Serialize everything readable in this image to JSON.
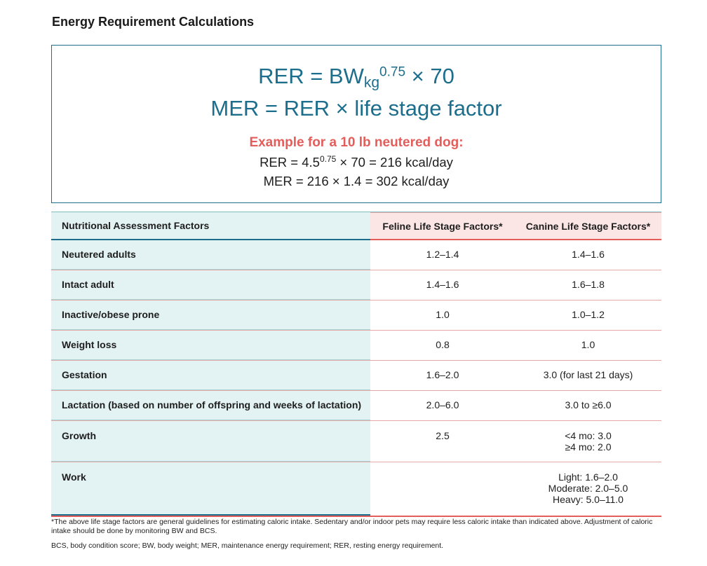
{
  "title": "Energy Requirement Calculations",
  "formula": {
    "rer_left": "RER = BW",
    "rer_sub": "kg",
    "rer_sup": "0.75",
    "rer_right": " × 70",
    "mer": "MER = RER × life stage factor"
  },
  "example": {
    "title": "Example for a 10 lb neutered dog:",
    "line1_left": "RER = 4.5",
    "line1_sup": "0.75",
    "line1_right": " × 70 = 216 kcal/day",
    "line2": "MER = 216 × 1.4 = 302 kcal/day"
  },
  "table": {
    "headers": [
      "Nutritional Assessment Factors",
      "Feline Life Stage Factors*",
      "Canine Life Stage Factors*"
    ],
    "rows": [
      {
        "factor": "Neutered adults",
        "feline": "1.2–1.4",
        "canine": "1.4–1.6"
      },
      {
        "factor": "Intact adult",
        "feline": "1.4–1.6",
        "canine": "1.6–1.8"
      },
      {
        "factor": "Inactive/obese prone",
        "feline": "1.0",
        "canine": "1.0–1.2"
      },
      {
        "factor": "Weight loss",
        "feline": "0.8",
        "canine": "1.0"
      },
      {
        "factor": "Gestation",
        "feline": "1.6–2.0",
        "canine": "3.0 (for last 21 days)"
      },
      {
        "factor": "Lactation (based on number of offspring and weeks of lactation)",
        "feline": "2.0–6.0",
        "canine": "3.0 to ≥6.0"
      },
      {
        "factor": "Growth",
        "feline": "2.5",
        "canine_lines": [
          "<4 mo: 3.0",
          "≥4 mo: 2.0"
        ]
      },
      {
        "factor": "Work",
        "feline": "",
        "canine_lines": [
          "Light: 1.6–2.0",
          "Moderate: 2.0–5.0",
          "Heavy: 5.0–11.0"
        ]
      }
    ]
  },
  "footnotes": {
    "note1": "*The above life stage factors are general guidelines for estimating caloric intake. Sedentary and/or indoor pets may require less caloric intake than indicated above. Adjustment of caloric intake should be done by monitoring BW and BCS.",
    "note2": "BCS, body condition score; BW, body weight; MER, maintenance energy requirement; RER, resting energy requirement."
  }
}
